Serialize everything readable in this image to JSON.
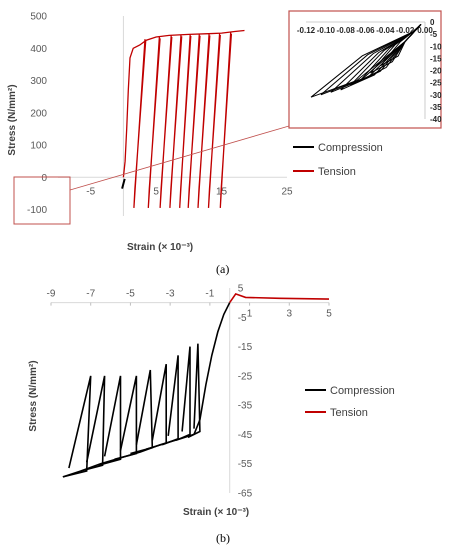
{
  "chart_data": [
    {
      "panel": "(a)",
      "type": "line",
      "xlabel": "Strain (× 10⁻³)",
      "ylabel": "Stress (N/mm²)",
      "xlim": [
        -10,
        25
      ],
      "ylim": [
        -120,
        500
      ],
      "x_ticks": [
        "-5",
        "5",
        "15",
        "25"
      ],
      "y_ticks": [
        "500",
        "400",
        "300",
        "200",
        "100",
        "0",
        "-100"
      ],
      "legend_position": "right",
      "grid": false,
      "series": [
        {
          "name": "Compression",
          "color": "#000000",
          "points": [
            [
              -0.2,
              -35
            ],
            [
              0,
              -20
            ],
            [
              0.2,
              -5
            ]
          ]
        },
        {
          "name": "Tension",
          "color": "#c00000",
          "envelope": [
            [
              0,
              0
            ],
            [
              0.25,
              50
            ],
            [
              0.5,
              150
            ],
            [
              0.75,
              270
            ],
            [
              1.0,
              370
            ],
            [
              1.5,
              400
            ],
            [
              2.5,
              410
            ],
            [
              3.5,
              425
            ],
            [
              5,
              435
            ],
            [
              7,
              440
            ],
            [
              10,
              443
            ],
            [
              13,
              445
            ],
            [
              15,
              447
            ],
            [
              17,
              452
            ],
            [
              18.5,
              455
            ]
          ],
          "unloading_cycles": [
            {
              "peak_strain": 3.3,
              "peak_stress": 428,
              "end_strain": 1.6,
              "end_stress": -95
            },
            {
              "peak_strain": 5.5,
              "peak_stress": 436,
              "end_strain": 3.8,
              "end_stress": -95
            },
            {
              "peak_strain": 7.3,
              "peak_stress": 440,
              "end_strain": 5.6,
              "end_stress": -95
            },
            {
              "peak_strain": 8.8,
              "peak_stress": 442,
              "end_strain": 7.1,
              "end_stress": -95
            },
            {
              "peak_strain": 10.2,
              "peak_stress": 443,
              "end_strain": 8.6,
              "end_stress": -95
            },
            {
              "peak_strain": 11.6,
              "peak_stress": 444,
              "end_strain": 9.9,
              "end_stress": -95
            },
            {
              "peak_strain": 13.1,
              "peak_stress": 445,
              "end_strain": 11.4,
              "end_stress": -95
            },
            {
              "peak_strain": 14.7,
              "peak_stress": 446,
              "end_strain": 13.0,
              "end_stress": -95
            },
            {
              "peak_strain": 16.4,
              "peak_stress": 450,
              "end_strain": 14.8,
              "end_stress": -95
            }
          ]
        }
      ]
    },
    {
      "panel": "(a) inset",
      "type": "line",
      "x_ticks": [
        "-0.12",
        "-0.10",
        "-0.08",
        "-0.06",
        "-0.04",
        "-0.02",
        "0.00"
      ],
      "y_ticks": [
        "0",
        "-5",
        "-10",
        "-15",
        "-20",
        "-25",
        "-30",
        "-35",
        "-40"
      ],
      "xlim": [
        -0.12,
        0
      ],
      "ylim": [
        -40,
        0
      ],
      "loops": [
        {
          "min_strain": -0.115,
          "min_stress": -31
        },
        {
          "min_strain": -0.105,
          "min_stress": -30
        },
        {
          "min_strain": -0.095,
          "min_stress": -29
        },
        {
          "min_strain": -0.085,
          "min_stress": -28
        },
        {
          "min_strain": -0.075,
          "min_stress": -26
        },
        {
          "min_strain": -0.065,
          "min_stress": -24
        },
        {
          "min_strain": -0.055,
          "min_stress": -21
        },
        {
          "min_strain": -0.045,
          "min_stress": -18
        }
      ]
    },
    {
      "panel": "(b)",
      "type": "line",
      "xlabel": "Strain (× 10⁻³)",
      "ylabel": "Stress (N/mm²)",
      "xlim": [
        -9,
        5
      ],
      "ylim": [
        -65,
        5
      ],
      "x_ticks": [
        "-9",
        "-7",
        "-5",
        "-3",
        "-1",
        "1",
        "3",
        "5"
      ],
      "y_ticks": [
        "5",
        "-5",
        "-15",
        "-25",
        "-35",
        "-45",
        "-55",
        "-65"
      ],
      "legend_position": "right",
      "grid": false,
      "series": [
        {
          "name": "Compression",
          "color": "#000000",
          "initial_loading": [
            [
              0,
              0
            ],
            [
              -0.3,
              -4
            ],
            [
              -0.6,
              -10
            ],
            [
              -0.9,
              -18
            ],
            [
              -1.2,
              -28
            ],
            [
              -1.5,
              -40
            ],
            [
              -1.8,
              -45
            ]
          ],
          "envelope": [
            [
              -1.8,
              -45
            ],
            [
              -2.5,
              -46.5
            ],
            [
              -3.5,
              -48.5
            ],
            [
              -4.5,
              -51
            ],
            [
              -5.5,
              -53
            ],
            [
              -6.5,
              -55
            ],
            [
              -7.5,
              -57.5
            ],
            [
              -8.4,
              -59.5
            ]
          ],
          "cycles": [
            {
              "peak_strain": -8.4,
              "peak_stress": -59.5,
              "unload_strain": -7.2,
              "reload_top_strain": -7.0,
              "reload_top_stress": -25
            },
            {
              "peak_strain": -7.5,
              "peak_stress": -57.5,
              "unload_strain": -6.4,
              "reload_top_strain": -6.3,
              "reload_top_stress": -25
            },
            {
              "peak_strain": -6.6,
              "peak_stress": -55.5,
              "unload_strain": -5.5,
              "reload_top_strain": -5.5,
              "reload_top_stress": -25
            },
            {
              "peak_strain": -5.8,
              "peak_stress": -53.5,
              "unload_strain": -4.7,
              "reload_top_strain": -4.7,
              "reload_top_stress": -25
            },
            {
              "peak_strain": -5.0,
              "peak_stress": -51.5,
              "unload_strain": -3.9,
              "reload_top_strain": -4.0,
              "reload_top_stress": -23
            },
            {
              "peak_strain": -4.2,
              "peak_stress": -50,
              "unload_strain": -3.2,
              "reload_top_strain": -3.2,
              "reload_top_stress": -21
            },
            {
              "peak_strain": -3.4,
              "peak_stress": -48.5,
              "unload_strain": -2.6,
              "reload_top_strain": -2.6,
              "reload_top_stress": -18
            },
            {
              "peak_strain": -2.7,
              "peak_stress": -47,
              "unload_strain": -2.0,
              "reload_top_strain": -2.0,
              "reload_top_stress": -15
            },
            {
              "peak_strain": -2.1,
              "peak_stress": -46,
              "unload_strain": -1.5,
              "reload_top_strain": -1.6,
              "reload_top_stress": -14
            }
          ]
        },
        {
          "name": "Tension",
          "color": "#c00000",
          "points": [
            [
              0,
              0
            ],
            [
              0.3,
              3.0
            ],
            [
              0.8,
              1.8
            ],
            [
              2.5,
              1.5
            ],
            [
              5,
              1.2
            ]
          ]
        }
      ]
    }
  ]
}
